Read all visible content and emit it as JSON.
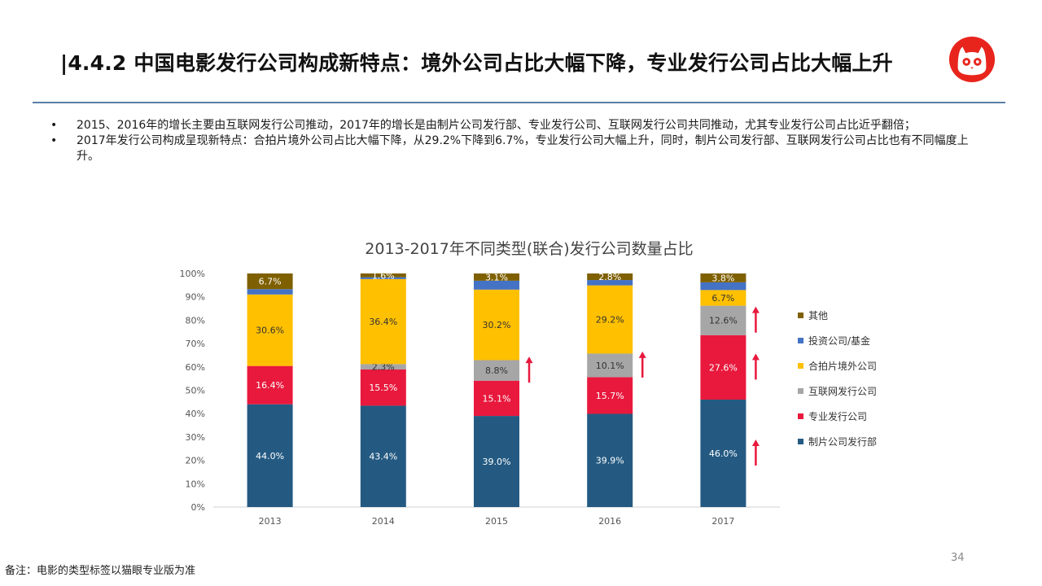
{
  "header": {
    "title": "|4.4.2 中国电影发行公司构成新特点：境外公司占比大幅下降，专业发行公司占比大幅上升",
    "logo_icon": "maoyan-cat-logo-icon"
  },
  "bullets": [
    {
      "mark": "•",
      "text": "2015、2016年的增长主要由互联网发行公司推动，2017年的增长是由制片公司发行部、专业发行公司、互联网发行公司共同推动，尤其专业发行公司占比近乎翻倍；"
    },
    {
      "mark": "•",
      "text": "2017年发行公司构成呈现新特点：合拍片境外公司占比大幅下降，从29.2%下降到6.7%，专业发行公司大幅上升，同时，制片公司发行部、互联网发行公司占比也有不同幅度上升。"
    }
  ],
  "chart_data": {
    "type": "bar",
    "stacked": true,
    "title": "2013-2017年不同类型(联合)发行公司数量占比",
    "categories": [
      "2013",
      "2014",
      "2015",
      "2016",
      "2017"
    ],
    "ylim": [
      0,
      100
    ],
    "y_ticks": [
      "0%",
      "10%",
      "20%",
      "30%",
      "40%",
      "50%",
      "60%",
      "70%",
      "80%",
      "90%",
      "100%"
    ],
    "series": [
      {
        "name": "制片公司发行部",
        "color": "#245a82",
        "values": [
          44.0,
          43.4,
          39.0,
          39.9,
          46.0
        ],
        "labels": [
          "44.0%",
          "43.4%",
          "39.0%",
          "39.9%",
          "46.0%"
        ]
      },
      {
        "name": "专业发行公司",
        "color": "#e8193d",
        "values": [
          16.4,
          15.5,
          15.1,
          15.7,
          27.6
        ],
        "labels": [
          "16.4%",
          "15.5%",
          "15.1%",
          "15.7%",
          "27.6%"
        ]
      },
      {
        "name": "互联网发行公司",
        "color": "#a6a6a6",
        "values": [
          0.0,
          2.3,
          8.8,
          10.1,
          12.6
        ],
        "labels": [
          "",
          "2.3%",
          "8.8%",
          "10.1%",
          "12.6%"
        ]
      },
      {
        "name": "合拍片境外公司",
        "color": "#ffc000",
        "values": [
          30.6,
          36.4,
          30.2,
          29.2,
          6.7
        ],
        "labels": [
          "30.6%",
          "36.4%",
          "30.2%",
          "29.2%",
          "6.7%"
        ]
      },
      {
        "name": "投资公司/基金",
        "color": "#4472c4",
        "values": [
          2.3,
          0.8,
          3.8,
          2.3,
          3.3
        ],
        "labels": [
          "",
          "",
          "",
          "",
          ""
        ]
      },
      {
        "name": "其他",
        "color": "#7f6000",
        "values": [
          6.7,
          1.6,
          3.1,
          2.8,
          3.8
        ],
        "labels": [
          "6.7%",
          "1.6%",
          "3.1%",
          "2.8%",
          "3.8%"
        ]
      }
    ],
    "legend_order": [
      "其他",
      "投资公司/基金",
      "合拍片境外公司",
      "互联网发行公司",
      "专业发行公司",
      "制片公司发行部"
    ],
    "legend_position": "right",
    "annotations": [
      {
        "type": "up-arrow",
        "color": "#e8193d",
        "category": "2015",
        "series": "互联网发行公司"
      },
      {
        "type": "up-arrow",
        "color": "#e8193d",
        "category": "2016",
        "series": "互联网发行公司"
      },
      {
        "type": "up-arrow",
        "color": "#e8193d",
        "category": "2017",
        "series": "互联网发行公司"
      },
      {
        "type": "up-arrow",
        "color": "#e8193d",
        "category": "2017",
        "series": "专业发行公司"
      },
      {
        "type": "up-arrow",
        "color": "#e8193d",
        "category": "2017",
        "series": "制片公司发行部"
      }
    ]
  },
  "footer": {
    "page_number": "34",
    "note": "备注：电影的类型标签以猫眼专业版为准"
  }
}
